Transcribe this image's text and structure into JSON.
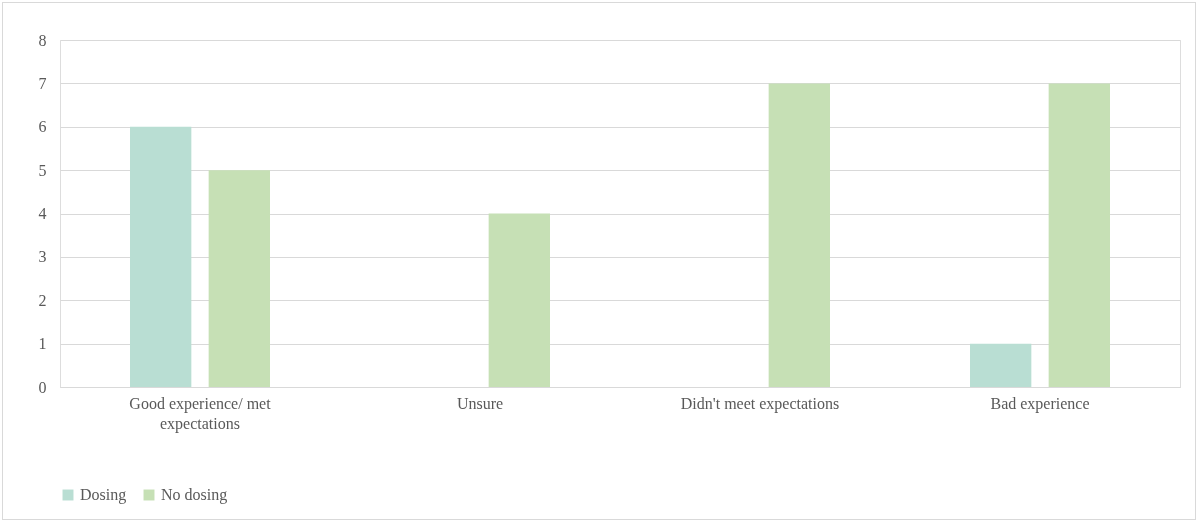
{
  "chart_data": {
    "type": "bar",
    "categories": [
      "Good experience/ met expectations",
      "Unsure",
      "Didn't meet expectations",
      "Bad experience"
    ],
    "series": [
      {
        "name": "Dosing",
        "color": "#b9ded3",
        "values": [
          6,
          0,
          0,
          1
        ]
      },
      {
        "name": "No dosing",
        "color": "#c6e0b5",
        "values": [
          5,
          4,
          7,
          7
        ]
      }
    ],
    "ylim": [
      0,
      8
    ],
    "yticks": [
      0,
      1,
      2,
      3,
      4,
      5,
      6,
      7,
      8
    ],
    "grid": "y",
    "legend": "bottom"
  }
}
